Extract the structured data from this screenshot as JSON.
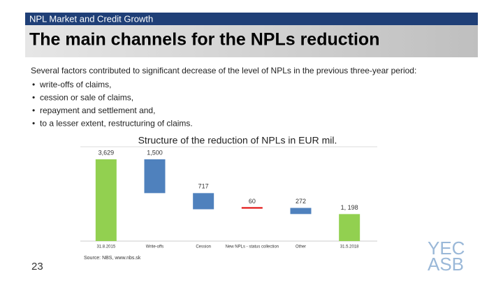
{
  "section": "NPL Market and Credit Growth",
  "title": "The main channels for the NPLs reduction",
  "intro": "Several factors contributed to significant decrease of the level of NPLs in the previous three-year period:",
  "bullets": [
    "write-offs of claims,",
    "cession or sale of claims,",
    "repayment and settlement and,",
    "to a lesser extent, restructuring of claims."
  ],
  "page_number": "23",
  "logo": [
    "YEC",
    "ASB"
  ],
  "chart_data": {
    "type": "waterfall",
    "title": "Structure of the reduction of NPLs in EUR mil.",
    "categories": [
      "31.8.2015",
      "Write-offs",
      "Cession",
      "New NPLs - status collection",
      "Other",
      "31.5.2018"
    ],
    "values": [
      3629,
      -1500,
      -717,
      60,
      -272,
      1198
    ],
    "value_labels": [
      "3,629",
      "1,500",
      "717",
      "60",
      "272",
      "1, 198"
    ],
    "colors": [
      "#92d050",
      "#4f81bd",
      "#4f81bd",
      "#e00000",
      "#4f81bd",
      "#92d050"
    ],
    "source": "Source: NBS, www.nbs.sk"
  }
}
